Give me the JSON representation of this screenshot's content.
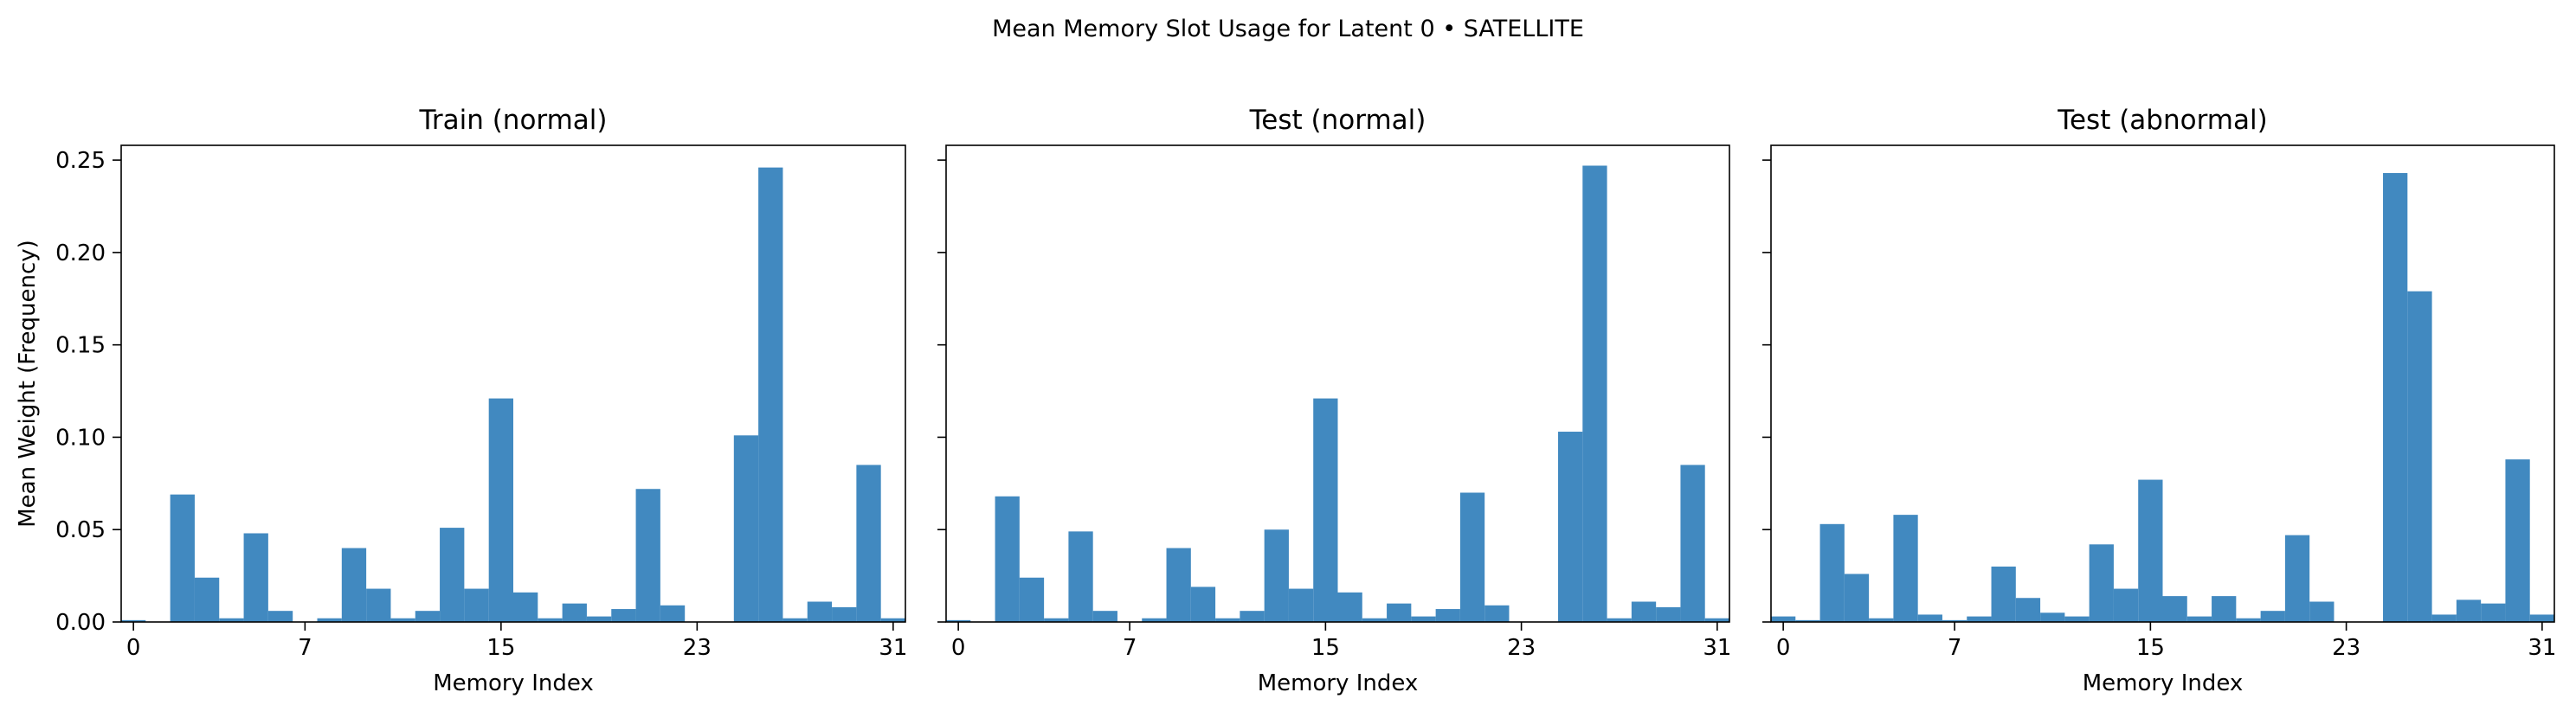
{
  "figure_title": "Mean Memory Slot Usage for Latent 0 • SATELLITE",
  "bar_color": "#4189c0",
  "chart_data": [
    {
      "type": "bar",
      "title": "Train (normal)",
      "xlabel": "Memory Index",
      "ylabel": "Mean Weight (Frequency)",
      "ylim": [
        0,
        0.258
      ],
      "xlim": [
        -0.5,
        31.5
      ],
      "x_ticks": [
        0,
        7,
        15,
        23,
        31
      ],
      "y_ticks": [
        0.0,
        0.05,
        0.1,
        0.15,
        0.2,
        0.25
      ],
      "y_tick_labels": [
        "0.00",
        "0.05",
        "0.10",
        "0.15",
        "0.20",
        "0.25"
      ],
      "categories": [
        0,
        1,
        2,
        3,
        4,
        5,
        6,
        7,
        8,
        9,
        10,
        11,
        12,
        13,
        14,
        15,
        16,
        17,
        18,
        19,
        20,
        21,
        22,
        23,
        24,
        25,
        26,
        27,
        28,
        29,
        30,
        31
      ],
      "values": [
        0.001,
        0.0,
        0.069,
        0.024,
        0.002,
        0.048,
        0.006,
        0.0,
        0.002,
        0.04,
        0.018,
        0.002,
        0.006,
        0.051,
        0.018,
        0.121,
        0.016,
        0.002,
        0.01,
        0.003,
        0.007,
        0.072,
        0.009,
        0.0,
        0.0,
        0.101,
        0.246,
        0.002,
        0.011,
        0.008,
        0.085,
        0.002
      ]
    },
    {
      "type": "bar",
      "title": "Test (normal)",
      "xlabel": "Memory Index",
      "ylabel": "",
      "ylim": [
        0,
        0.258
      ],
      "xlim": [
        -0.5,
        31.5
      ],
      "x_ticks": [
        0,
        7,
        15,
        23,
        31
      ],
      "y_ticks": [
        0.0,
        0.05,
        0.1,
        0.15,
        0.2,
        0.25
      ],
      "y_tick_labels": [],
      "categories": [
        0,
        1,
        2,
        3,
        4,
        5,
        6,
        7,
        8,
        9,
        10,
        11,
        12,
        13,
        14,
        15,
        16,
        17,
        18,
        19,
        20,
        21,
        22,
        23,
        24,
        25,
        26,
        27,
        28,
        29,
        30,
        31
      ],
      "values": [
        0.001,
        0.0,
        0.068,
        0.024,
        0.002,
        0.049,
        0.006,
        0.0,
        0.002,
        0.04,
        0.019,
        0.002,
        0.006,
        0.05,
        0.018,
        0.121,
        0.016,
        0.002,
        0.01,
        0.003,
        0.007,
        0.07,
        0.009,
        0.0,
        0.0,
        0.103,
        0.247,
        0.002,
        0.011,
        0.008,
        0.085,
        0.002
      ]
    },
    {
      "type": "bar",
      "title": "Test (abnormal)",
      "xlabel": "Memory Index",
      "ylabel": "",
      "ylim": [
        0,
        0.258
      ],
      "xlim": [
        -0.5,
        31.5
      ],
      "x_ticks": [
        0,
        7,
        15,
        23,
        31
      ],
      "y_ticks": [
        0.0,
        0.05,
        0.1,
        0.15,
        0.2,
        0.25
      ],
      "y_tick_labels": [],
      "categories": [
        0,
        1,
        2,
        3,
        4,
        5,
        6,
        7,
        8,
        9,
        10,
        11,
        12,
        13,
        14,
        15,
        16,
        17,
        18,
        19,
        20,
        21,
        22,
        23,
        24,
        25,
        26,
        27,
        28,
        29,
        30,
        31
      ],
      "values": [
        0.003,
        0.001,
        0.053,
        0.026,
        0.002,
        0.058,
        0.004,
        0.001,
        0.003,
        0.03,
        0.013,
        0.005,
        0.003,
        0.042,
        0.018,
        0.077,
        0.014,
        0.003,
        0.014,
        0.002,
        0.006,
        0.047,
        0.011,
        0.0,
        0.0,
        0.243,
        0.179,
        0.004,
        0.012,
        0.01,
        0.088,
        0.004
      ]
    }
  ]
}
